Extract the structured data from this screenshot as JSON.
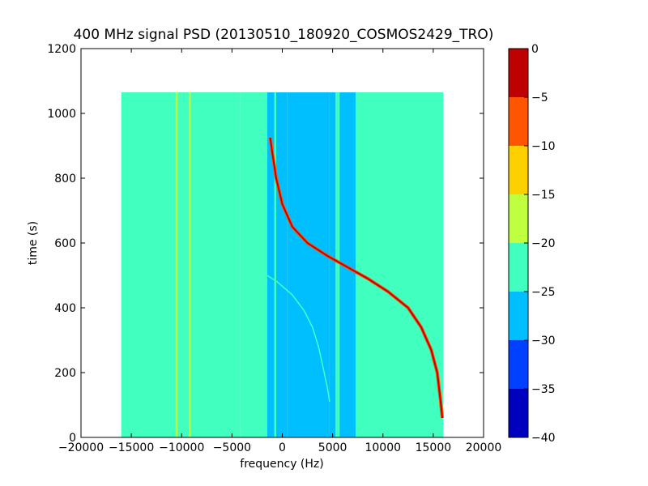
{
  "chart_data": {
    "type": "heatmap",
    "title": "400 MHz signal PSD (20130510_180920_COSMOS2429_TRO)",
    "xlabel": "frequency (Hz)",
    "ylabel": "time (s)",
    "xlim": [
      -20000,
      20000
    ],
    "ylim": [
      0,
      1200
    ],
    "x_ticks": [
      -20000,
      -15000,
      -10000,
      -5000,
      0,
      5000,
      10000,
      15000,
      20000
    ],
    "y_ticks": [
      0,
      200,
      400,
      600,
      800,
      1000,
      1200
    ],
    "data_extent": {
      "freq_hz": [
        -16000,
        16000
      ],
      "time_s": [
        0,
        1065
      ]
    },
    "grid": false,
    "colorbar": {
      "range": [
        -40,
        0
      ],
      "ticks": [
        0,
        -5,
        -10,
        -15,
        -20,
        -25,
        -30,
        -35,
        -40
      ],
      "levels": [
        {
          "from": -40,
          "to": -35,
          "color": "#0000bf"
        },
        {
          "from": -35,
          "to": -30,
          "color": "#0040ff"
        },
        {
          "from": -30,
          "to": -25,
          "color": "#00bfff"
        },
        {
          "from": -25,
          "to": -20,
          "color": "#40ffbf"
        },
        {
          "from": -20,
          "to": -15,
          "color": "#bfff40"
        },
        {
          "from": -15,
          "to": -10,
          "color": "#ffd000"
        },
        {
          "from": -10,
          "to": -5,
          "color": "#ff5500"
        },
        {
          "from": -5,
          "to": 0,
          "color": "#bf0000"
        }
      ]
    },
    "background_bands": [
      {
        "f0": -16000,
        "f1": -4200,
        "level": -22
      },
      {
        "f0": -4200,
        "f1": -1500,
        "level": -24
      },
      {
        "f0": -1500,
        "f1": 500,
        "level": -27
      },
      {
        "f0": 500,
        "f1": 4700,
        "level": -28
      },
      {
        "f0": 4700,
        "f1": 5300,
        "level": -27
      },
      {
        "f0": 5300,
        "f1": 7300,
        "level": -27
      },
      {
        "f0": 7300,
        "f1": 16000,
        "level": -22
      }
    ],
    "constant_lines": [
      {
        "freq": -10500,
        "level": -18
      },
      {
        "freq": -9200,
        "level": -18
      },
      {
        "freq": 5400,
        "level": -21
      },
      {
        "freq": 5600,
        "level": -21
      },
      {
        "freq": -700,
        "level": -22
      }
    ],
    "series": [
      {
        "level": -3,
        "points": [
          [
            -1200,
            925
          ],
          [
            -1000,
            880
          ],
          [
            -600,
            800
          ],
          [
            0,
            720
          ],
          [
            1000,
            650
          ],
          [
            2500,
            600
          ],
          [
            4500,
            560
          ],
          [
            6500,
            525
          ],
          [
            8500,
            490
          ],
          [
            10500,
            450
          ],
          [
            12500,
            400
          ],
          [
            13800,
            340
          ],
          [
            14800,
            270
          ],
          [
            15400,
            200
          ],
          [
            15700,
            120
          ],
          [
            15900,
            60
          ]
        ]
      },
      {
        "level": -20,
        "points": [
          [
            -2000,
            510
          ],
          [
            -500,
            480
          ],
          [
            1000,
            440
          ],
          [
            2200,
            390
          ],
          [
            3000,
            340
          ],
          [
            3600,
            280
          ],
          [
            4100,
            210
          ],
          [
            4500,
            150
          ],
          [
            4700,
            110
          ]
        ]
      }
    ]
  }
}
